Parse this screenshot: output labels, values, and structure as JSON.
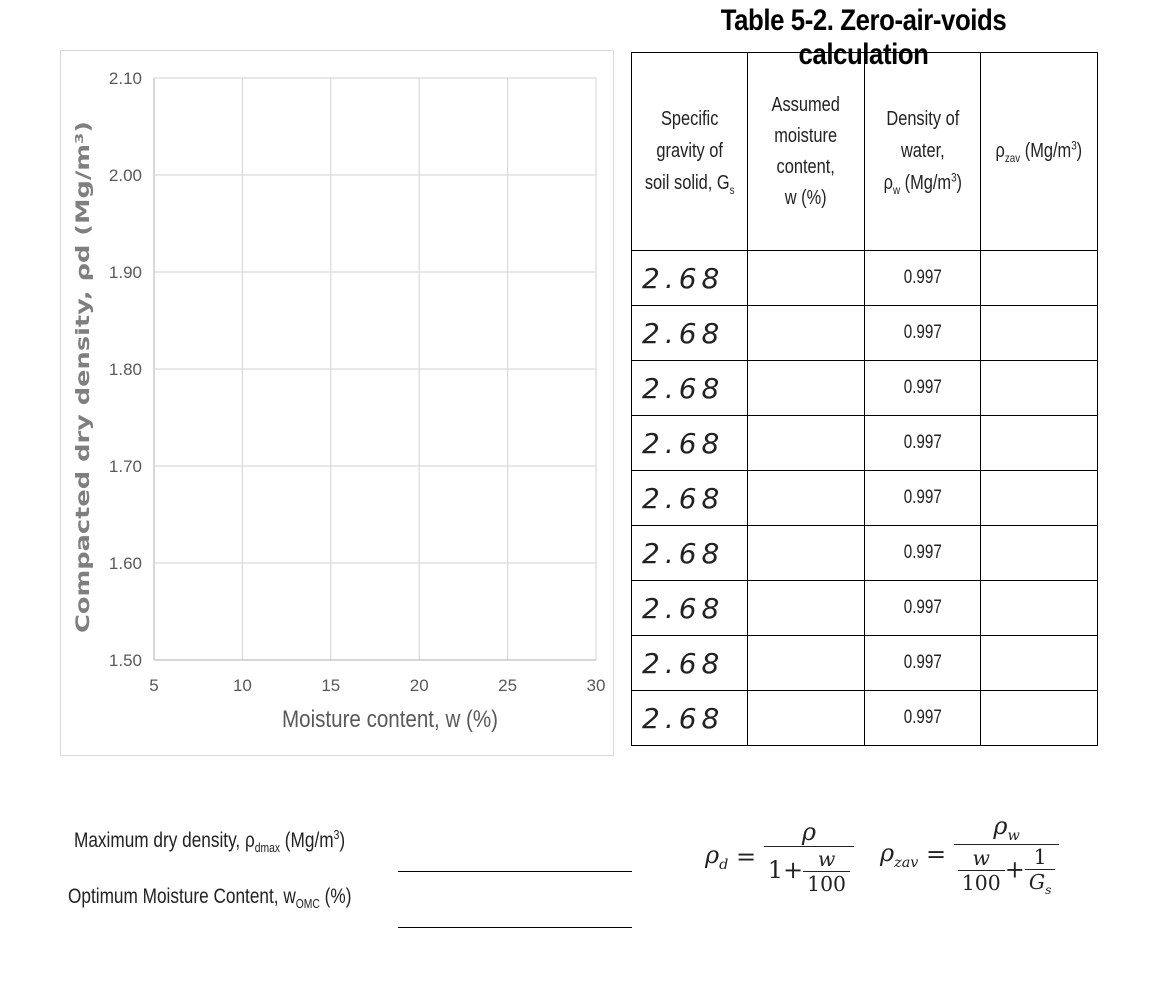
{
  "chart_data": {
    "type": "scatter",
    "title": "",
    "xlabel": "Moisture content, w (%)",
    "ylabel": "Compacted dry density, ρd (Mg/m³)",
    "xlim": [
      5,
      30
    ],
    "ylim": [
      1.5,
      2.1
    ],
    "x_ticks": [
      5,
      10,
      15,
      20,
      25,
      30
    ],
    "y_ticks": [
      1.5,
      1.6,
      1.7,
      1.8,
      1.9,
      2.0,
      2.1
    ],
    "x_tick_labels": [
      "5",
      "10",
      "15",
      "20",
      "25",
      "30"
    ],
    "y_tick_labels": [
      "1.50",
      "1.60",
      "1.70",
      "1.80",
      "1.90",
      "2.00",
      "2.10"
    ],
    "grid": true,
    "series": [],
    "colors": {
      "grid": "#d9d9d9",
      "axis": "#bfbfbf",
      "text": "#595959"
    }
  },
  "table": {
    "title": "Table 5-2. Zero-air-voids calculation",
    "headers": [
      {
        "lines": [
          "Specific",
          "gravity of",
          "soil solid, G"
        ],
        "sub": "s"
      },
      {
        "lines": [
          "Assumed",
          "moisture",
          "content,",
          "w (%)"
        ]
      },
      {
        "lines": [
          "Density of",
          "water,",
          "ρ"
        ],
        "sub": "w",
        "tail": " (Mg/m",
        "sup": "3",
        "end": ")"
      },
      {
        "lines": [
          "ρ"
        ],
        "sub": "zav",
        "tail": " (Mg/m",
        "sup": "3",
        "end": ")"
      }
    ],
    "rows": [
      {
        "gs": "2.68",
        "w": "",
        "rho_w": "0.997",
        "rho_zav": ""
      },
      {
        "gs": "2.68",
        "w": "",
        "rho_w": "0.997",
        "rho_zav": ""
      },
      {
        "gs": "2.68",
        "w": "",
        "rho_w": "0.997",
        "rho_zav": ""
      },
      {
        "gs": "2.68",
        "w": "",
        "rho_w": "0.997",
        "rho_zav": ""
      },
      {
        "gs": "2.68",
        "w": "",
        "rho_w": "0.997",
        "rho_zav": ""
      },
      {
        "gs": "2.68",
        "w": "",
        "rho_w": "0.997",
        "rho_zav": ""
      },
      {
        "gs": "2.68",
        "w": "",
        "rho_w": "0.997",
        "rho_zav": ""
      },
      {
        "gs": "2.68",
        "w": "",
        "rho_w": "0.997",
        "rho_zav": ""
      },
      {
        "gs": "2.68",
        "w": "",
        "rho_w": "0.997",
        "rho_zav": ""
      }
    ]
  },
  "fields": {
    "max_dry_density": {
      "label": "Maximum dry density, ρ",
      "sub": "dmax",
      "tail": " (Mg/m",
      "sup": "3",
      "end": ")",
      "value": ""
    },
    "omc": {
      "label": "Optimum Moisture Content, w",
      "sub": "OMC",
      "tail": " (%)",
      "value": ""
    }
  },
  "formulas": {
    "rho_d": {
      "lhs": "ρ",
      "lhs_sub": "d",
      "eq": "=",
      "num": "ρ",
      "den_one": "1",
      "den_plus": "+",
      "den_num": "w",
      "den_den": "100"
    },
    "rho_zav": {
      "lhs": "ρ",
      "lhs_sub": "zav",
      "eq": "=",
      "num": "ρ",
      "num_sub": "w",
      "den_num": "w",
      "den_den": "100",
      "den_plus": "+",
      "den_num2": "1",
      "den_den2": "G",
      "den_den2_sub": "s"
    }
  }
}
